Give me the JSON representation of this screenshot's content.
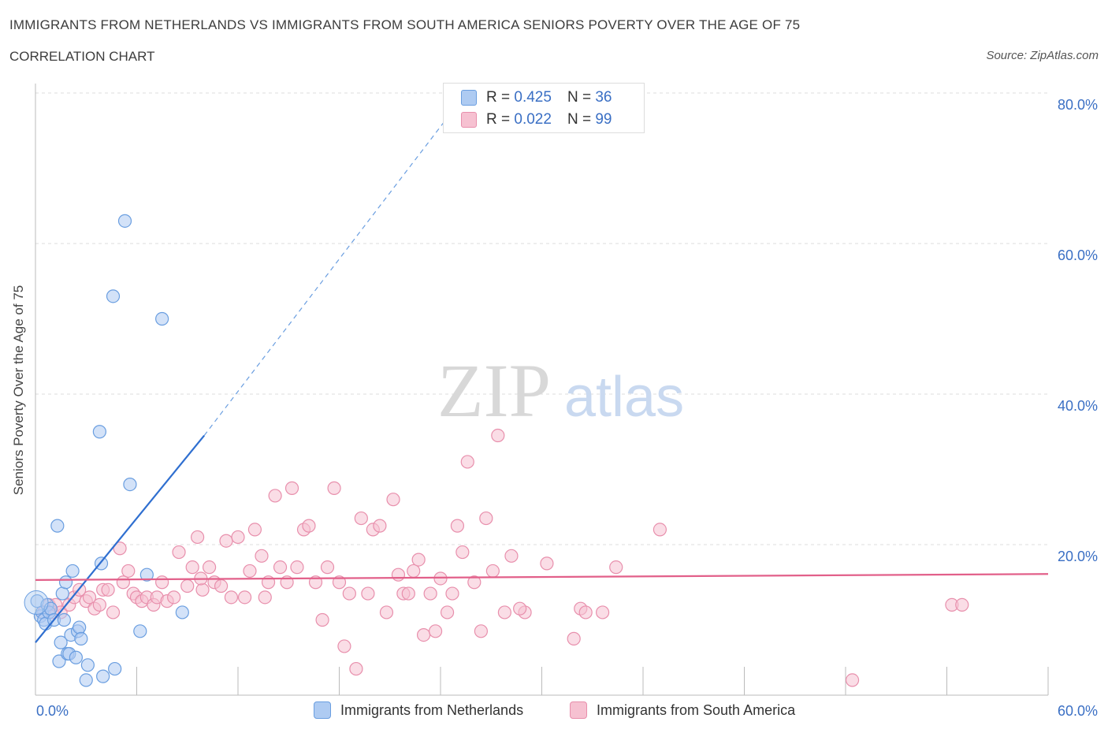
{
  "header": {
    "title": "IMMIGRANTS FROM NETHERLANDS VS IMMIGRANTS FROM SOUTH AMERICA SENIORS POVERTY OVER THE AGE OF 75",
    "subtitle": "CORRELATION CHART",
    "source": "Source: ZipAtlas.com"
  },
  "legend": {
    "r_label": "R = ",
    "n_label": "N = ",
    "series1": {
      "r": "0.425",
      "n": "36"
    },
    "series2": {
      "r": "0.022",
      "n": "99"
    }
  },
  "colors": {
    "blue_fill": "#aecbf2",
    "blue_stroke": "#6a9ee0",
    "blue_line": "#2f6fd0",
    "pink_fill": "#f6c1d1",
    "pink_stroke": "#e88fac",
    "pink_line": "#e2608a",
    "tick_label": "#3a6fc4",
    "grid": "#dddddd"
  },
  "watermark": {
    "zip": "ZIP",
    "atlas": "atlas"
  },
  "chart_data": {
    "type": "scatter",
    "title": "IMMIGRANTS FROM NETHERLANDS VS IMMIGRANTS FROM SOUTH AMERICA SENIORS POVERTY OVER THE AGE OF 75",
    "xlabel": "",
    "ylabel": "Seniors Poverty Over the Age of 75",
    "xlim": [
      0,
      60
    ],
    "ylim": [
      0,
      80
    ],
    "x_tick_labels": [
      "0.0%",
      "60.0%"
    ],
    "y_ticks": [
      {
        "value": 20,
        "label": "20.0%"
      },
      {
        "value": 40,
        "label": "40.0%"
      },
      {
        "value": 60,
        "label": "60.0%"
      },
      {
        "value": 80,
        "label": "80.0%"
      }
    ],
    "grid": true,
    "series": [
      {
        "name": "Immigrants from Netherlands",
        "color": "blue",
        "points": [
          [
            0.1,
            12.5
          ],
          [
            0.3,
            10.5
          ],
          [
            0.4,
            11
          ],
          [
            0.5,
            10
          ],
          [
            0.6,
            9.5
          ],
          [
            0.7,
            12
          ],
          [
            0.8,
            11
          ],
          [
            0.9,
            11.5
          ],
          [
            1.1,
            10
          ],
          [
            1.3,
            22.5
          ],
          [
            1.4,
            4.5
          ],
          [
            1.5,
            7
          ],
          [
            1.6,
            13.5
          ],
          [
            1.7,
            10
          ],
          [
            1.8,
            15
          ],
          [
            1.9,
            5.5
          ],
          [
            2.0,
            5.5
          ],
          [
            2.1,
            8
          ],
          [
            2.2,
            16.5
          ],
          [
            2.4,
            5
          ],
          [
            2.5,
            8.5
          ],
          [
            2.6,
            9
          ],
          [
            2.7,
            7.5
          ],
          [
            3.0,
            2
          ],
          [
            3.1,
            4
          ],
          [
            3.8,
            35
          ],
          [
            3.9,
            17.5
          ],
          [
            4.0,
            2.5
          ],
          [
            4.7,
            3.5
          ],
          [
            4.6,
            53
          ],
          [
            5.3,
            63
          ],
          [
            5.6,
            28
          ],
          [
            6.2,
            8.5
          ],
          [
            6.6,
            16
          ],
          [
            7.5,
            50
          ],
          [
            8.7,
            11
          ]
        ]
      },
      {
        "name": "Immigrants from South America",
        "color": "pink",
        "points": [
          [
            0.5,
            11
          ],
          [
            0.8,
            12
          ],
          [
            1.0,
            11
          ],
          [
            1.2,
            12
          ],
          [
            1.5,
            11
          ],
          [
            2.0,
            12
          ],
          [
            2.3,
            13
          ],
          [
            2.6,
            14
          ],
          [
            3.0,
            12.5
          ],
          [
            3.2,
            13
          ],
          [
            3.5,
            11.5
          ],
          [
            3.8,
            12
          ],
          [
            4.0,
            14
          ],
          [
            4.3,
            14
          ],
          [
            4.6,
            11
          ],
          [
            5.0,
            19.5
          ],
          [
            5.2,
            15
          ],
          [
            5.5,
            16.5
          ],
          [
            5.8,
            13.5
          ],
          [
            6.0,
            13
          ],
          [
            6.3,
            12.5
          ],
          [
            6.6,
            13
          ],
          [
            7.0,
            12
          ],
          [
            7.2,
            13
          ],
          [
            7.5,
            15
          ],
          [
            7.8,
            12.5
          ],
          [
            8.2,
            13
          ],
          [
            8.5,
            19
          ],
          [
            9.0,
            14.5
          ],
          [
            9.3,
            17
          ],
          [
            9.6,
            21
          ],
          [
            9.9,
            14
          ],
          [
            10.3,
            17
          ],
          [
            10.6,
            15
          ],
          [
            11.0,
            14.5
          ],
          [
            11.3,
            20.5
          ],
          [
            11.6,
            13
          ],
          [
            12.0,
            21
          ],
          [
            12.4,
            13
          ],
          [
            12.7,
            16.5
          ],
          [
            13.0,
            22
          ],
          [
            13.4,
            18.5
          ],
          [
            13.8,
            15
          ],
          [
            14.2,
            26.5
          ],
          [
            14.5,
            17
          ],
          [
            14.9,
            15
          ],
          [
            15.2,
            27.5
          ],
          [
            15.5,
            17
          ],
          [
            15.9,
            22
          ],
          [
            16.2,
            22.5
          ],
          [
            16.6,
            15
          ],
          [
            17.0,
            10
          ],
          [
            17.3,
            17
          ],
          [
            17.7,
            27.5
          ],
          [
            18.0,
            15
          ],
          [
            18.3,
            6.5
          ],
          [
            18.6,
            13.5
          ],
          [
            19.0,
            3.5
          ],
          [
            19.3,
            23.5
          ],
          [
            19.7,
            13.5
          ],
          [
            20.0,
            22
          ],
          [
            20.4,
            22.5
          ],
          [
            20.8,
            11
          ],
          [
            21.2,
            26
          ],
          [
            21.5,
            16
          ],
          [
            21.8,
            13.5
          ],
          [
            22.1,
            13.5
          ],
          [
            22.4,
            16.5
          ],
          [
            22.7,
            18
          ],
          [
            23.0,
            8
          ],
          [
            23.4,
            13.5
          ],
          [
            23.7,
            8.5
          ],
          [
            24.0,
            15.5
          ],
          [
            24.4,
            11
          ],
          [
            24.7,
            13.5
          ],
          [
            25.0,
            22.5
          ],
          [
            25.3,
            19
          ],
          [
            25.6,
            31
          ],
          [
            26.0,
            15
          ],
          [
            26.4,
            8.5
          ],
          [
            26.7,
            23.5
          ],
          [
            27.1,
            16.5
          ],
          [
            27.4,
            34.5
          ],
          [
            27.8,
            11
          ],
          [
            28.2,
            18.5
          ],
          [
            29.0,
            11
          ],
          [
            30.3,
            17.5
          ],
          [
            31.9,
            7.5
          ],
          [
            32.3,
            11.5
          ],
          [
            32.6,
            11
          ],
          [
            33.6,
            11
          ],
          [
            34.4,
            17
          ],
          [
            48.4,
            2
          ],
          [
            37.0,
            22
          ],
          [
            54.3,
            12
          ],
          [
            54.9,
            12
          ],
          [
            28.7,
            11.5
          ],
          [
            13.6,
            13
          ],
          [
            9.8,
            15.5
          ]
        ]
      }
    ],
    "trendlines": [
      {
        "series": "Immigrants from Netherlands",
        "solid_from": [
          0,
          7
        ],
        "solid_to": [
          10,
          34.5
        ],
        "dashed_to": [
          24.5,
          77
        ]
      },
      {
        "series": "Immigrants from South America",
        "from": [
          0,
          15.3
        ],
        "to": [
          60,
          16.1
        ]
      }
    ]
  }
}
